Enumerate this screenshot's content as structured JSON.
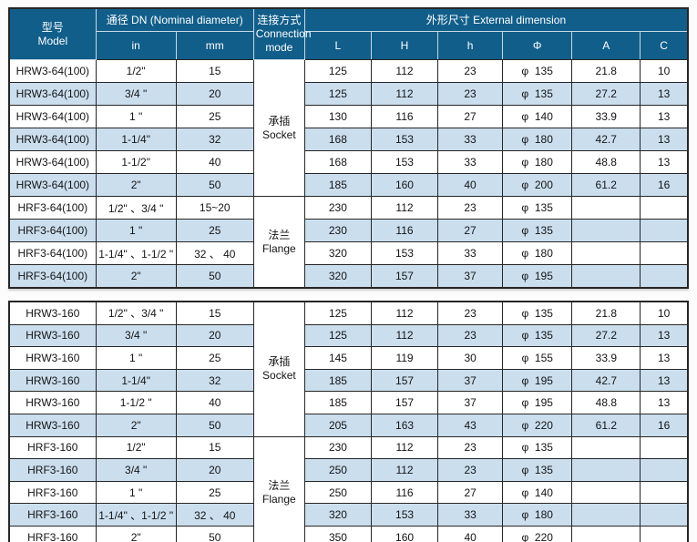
{
  "colors": {
    "header_bg": "#115e8a",
    "row_alt_bg": "#cbdeee",
    "row_bg": "#ffffff",
    "grid_border": "#262626",
    "header_text": "#ffffff",
    "cell_text": "#141414",
    "page_bg": "#fcfcfc"
  },
  "header": {
    "model_zh": "型号",
    "model_en": "Model",
    "dn_label": "通径 DN  (Nominal diameter)",
    "in_label": "in",
    "mm_label": "mm",
    "conn_zh": "连接方式",
    "conn_en1": "Connection",
    "conn_en2": "mode",
    "dim_label": "外形尺寸  External dimension",
    "dim_cols": [
      "L",
      "H",
      "h",
      "Φ",
      "A",
      "C"
    ]
  },
  "tables": [
    {
      "groups": [
        {
          "connection_zh": "承插",
          "connection_en": "Socket",
          "rows": [
            [
              "HRW3-64(100)",
              "1/2\"",
              "15",
              "125",
              "112",
              "23",
              "φ  135",
              "21.8",
              "10"
            ],
            [
              "HRW3-64(100)",
              "3/4 \"",
              "20",
              "125",
              "112",
              "23",
              "φ  135",
              "27.2",
              "13"
            ],
            [
              "HRW3-64(100)",
              "1 \"",
              "25",
              "130",
              "116",
              "27",
              "φ  140",
              "33.9",
              "13"
            ],
            [
              "HRW3-64(100)",
              "1-1/4\"",
              "32",
              "168",
              "153",
              "33",
              "φ  180",
              "42.7",
              "13"
            ],
            [
              "HRW3-64(100)",
              "1-1/2\"",
              "40",
              "168",
              "153",
              "33",
              "φ  180",
              "48.8",
              "13"
            ],
            [
              "HRW3-64(100)",
              "2\"",
              "50",
              "185",
              "160",
              "40",
              "φ  200",
              "61.2",
              "16"
            ]
          ]
        },
        {
          "connection_zh": "法兰",
          "connection_en": "Flange",
          "rows": [
            [
              "HRF3-64(100)",
              "1/2\" 、3/4 \"",
              "15~20",
              "230",
              "112",
              "23",
              "φ  135",
              "",
              ""
            ],
            [
              "HRF3-64(100)",
              "1 \"",
              "25",
              "230",
              "116",
              "27",
              "φ  135",
              "",
              ""
            ],
            [
              "HRF3-64(100)",
              "1-1/4\" 、1-1/2 \"",
              "32 、 40",
              "320",
              "153",
              "33",
              "φ  180",
              "",
              ""
            ],
            [
              "HRF3-64(100)",
              "2\"",
              "50",
              "320",
              "157",
              "37",
              "φ  195",
              "",
              ""
            ]
          ]
        }
      ]
    },
    {
      "groups": [
        {
          "connection_zh": "承插",
          "connection_en": "Socket",
          "rows": [
            [
              "HRW3-160",
              "1/2\" 、3/4 \"",
              "15",
              "125",
              "112",
              "23",
              "φ  135",
              "21.8",
              "10"
            ],
            [
              "HRW3-160",
              "3/4 \"",
              "20",
              "125",
              "112",
              "23",
              "φ  135",
              "27.2",
              "13"
            ],
            [
              "HRW3-160",
              "1 \"",
              "25",
              "145",
              "119",
              "30",
              "φ  155",
              "33.9",
              "13"
            ],
            [
              "HRW3-160",
              "1-1/4\"",
              "32",
              "185",
              "157",
              "37",
              "φ  195",
              "42.7",
              "13"
            ],
            [
              "HRW3-160",
              "1-1/2 \"",
              "40",
              "185",
              "157",
              "37",
              "φ  195",
              "48.8",
              "13"
            ],
            [
              "HRW3-160",
              "2\"",
              "50",
              "205",
              "163",
              "43",
              "φ  220",
              "61.2",
              "16"
            ]
          ]
        },
        {
          "connection_zh": "法兰",
          "connection_en": "Flange",
          "rows": [
            [
              "HRF3-160",
              "1/2\"",
              "15",
              "230",
              "112",
              "23",
              "φ  135",
              "",
              ""
            ],
            [
              "HRF3-160",
              "3/4 \"",
              "20",
              "250",
              "112",
              "23",
              "φ  135",
              "",
              ""
            ],
            [
              "HRF3-160",
              "1 \"",
              "25",
              "250",
              "116",
              "27",
              "φ  140",
              "",
              ""
            ],
            [
              "HRF3-160",
              "1-1/4\" 、1-1/2 \"",
              "32 、 40",
              "320",
              "153",
              "33",
              "φ  180",
              "",
              ""
            ],
            [
              "HRF3-160",
              "2\"",
              "50",
              "350",
              "160",
              "40",
              "φ  220",
              "",
              ""
            ]
          ]
        }
      ]
    }
  ]
}
